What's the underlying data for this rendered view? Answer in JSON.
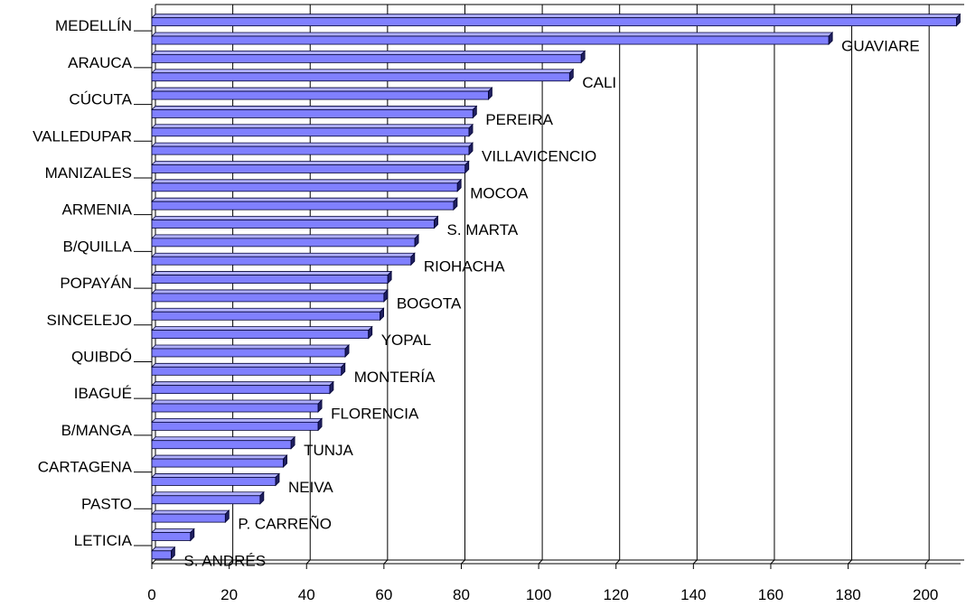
{
  "chart_data": {
    "type": "bar",
    "orientation": "horizontal",
    "three_d": true,
    "xlim": [
      0,
      210
    ],
    "xticks": [
      0,
      20,
      40,
      60,
      80,
      100,
      120,
      140,
      160,
      180,
      200
    ],
    "grid": true,
    "categories": [
      "MEDELLÍN",
      "GUAVIARE",
      "ARAUCA",
      "CALI",
      "CÚCUTA",
      "PEREIRA",
      "VALLEDUPAR",
      "VILLAVICENCIO",
      "MANIZALES",
      "MOCOA",
      "ARMENIA",
      "S. MARTA",
      "B/QUILLA",
      "RIOHACHA",
      "POPAYÁN",
      "BOGOTA",
      "SINCELEJO",
      "YOPAL",
      "QUIBDÓ",
      "MONTERÍA",
      "IBAGUÉ",
      "FLORENCIA",
      "B/MANGA",
      "TUNJA",
      "CARTAGENA",
      "NEIVA",
      "PASTO",
      "P. CARREÑO",
      "LETICIA",
      "S. ANDRÉS"
    ],
    "values": [
      208,
      175,
      111,
      108,
      87,
      83,
      82,
      82,
      81,
      79,
      78,
      73,
      68,
      67,
      61,
      60,
      59,
      56,
      50,
      49,
      46,
      43,
      43,
      36,
      34,
      32,
      28,
      19,
      10,
      5
    ],
    "bar_color": "#8080ff",
    "bar_top_color": "#b0b0ff",
    "bar_edge_color": "#000033"
  }
}
